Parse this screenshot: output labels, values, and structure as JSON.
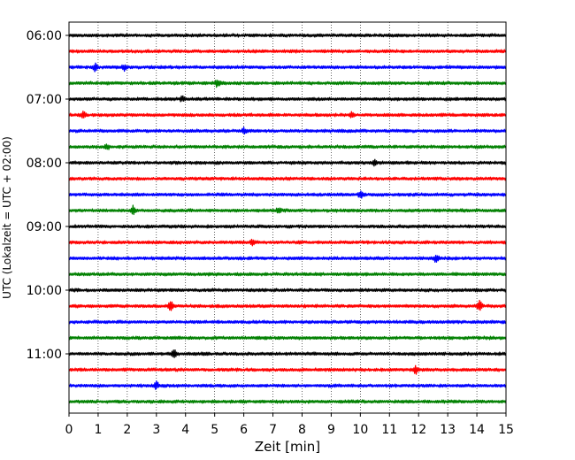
{
  "chart_data": {
    "type": "line",
    "title": "",
    "xlabel": "Zeit  [min]",
    "ylabel": "UTC (Lokalzeit = UTC + 02:00)",
    "xlim": [
      0,
      15
    ],
    "x_ticks": [
      0,
      1,
      2,
      3,
      4,
      5,
      6,
      7,
      8,
      9,
      10,
      11,
      12,
      13,
      14,
      15
    ],
    "x_tick_labels": [
      "0",
      "1",
      "2",
      "3",
      "4",
      "5",
      "6",
      "7",
      "8",
      "9",
      "10",
      "11",
      "12",
      "13",
      "14",
      "15"
    ],
    "y_tick_labels": [
      "06:00",
      "07:00",
      "08:00",
      "09:00",
      "10:00",
      "11:00"
    ],
    "grid": "vertical dotted at each minute",
    "legend": "none",
    "traces_per_hour": 4,
    "trace_minutes": 15,
    "color_cycle": [
      "#000000",
      "#ff0000",
      "#0000ff",
      "#008000"
    ],
    "traces": [
      {
        "start": "06:00",
        "color": "#000000"
      },
      {
        "start": "06:15",
        "color": "#ff0000"
      },
      {
        "start": "06:30",
        "color": "#0000ff"
      },
      {
        "start": "06:45",
        "color": "#008000"
      },
      {
        "start": "07:00",
        "color": "#000000"
      },
      {
        "start": "07:15",
        "color": "#ff0000"
      },
      {
        "start": "07:30",
        "color": "#0000ff"
      },
      {
        "start": "07:45",
        "color": "#008000"
      },
      {
        "start": "08:00",
        "color": "#000000"
      },
      {
        "start": "08:15",
        "color": "#ff0000"
      },
      {
        "start": "08:30",
        "color": "#0000ff"
      },
      {
        "start": "08:45",
        "color": "#008000"
      },
      {
        "start": "09:00",
        "color": "#000000"
      },
      {
        "start": "09:15",
        "color": "#ff0000"
      },
      {
        "start": "09:30",
        "color": "#0000ff"
      },
      {
        "start": "09:45",
        "color": "#008000"
      },
      {
        "start": "10:00",
        "color": "#000000"
      },
      {
        "start": "10:15",
        "color": "#ff0000"
      },
      {
        "start": "10:30",
        "color": "#0000ff"
      },
      {
        "start": "10:45",
        "color": "#008000"
      },
      {
        "start": "11:00",
        "color": "#000000"
      },
      {
        "start": "11:15",
        "color": "#ff0000"
      },
      {
        "start": "11:30",
        "color": "#0000ff"
      },
      {
        "start": "11:45",
        "color": "#008000"
      }
    ],
    "events": [
      {
        "trace": 2,
        "x": 0.9,
        "amp": 4
      },
      {
        "trace": 2,
        "x": 1.9,
        "amp": 3
      },
      {
        "trace": 3,
        "x": 5.1,
        "amp": 4
      },
      {
        "trace": 4,
        "x": 3.9,
        "amp": 3
      },
      {
        "trace": 5,
        "x": 0.5,
        "amp": 4
      },
      {
        "trace": 5,
        "x": 9.7,
        "amp": 3
      },
      {
        "trace": 6,
        "x": 6.0,
        "amp": 3
      },
      {
        "trace": 7,
        "x": 1.3,
        "amp": 3
      },
      {
        "trace": 8,
        "x": 10.5,
        "amp": 3
      },
      {
        "trace": 10,
        "x": 10.0,
        "amp": 4
      },
      {
        "trace": 11,
        "x": 2.2,
        "amp": 5
      },
      {
        "trace": 11,
        "x": 7.2,
        "amp": 3
      },
      {
        "trace": 13,
        "x": 6.3,
        "amp": 3
      },
      {
        "trace": 14,
        "x": 12.6,
        "amp": 4
      },
      {
        "trace": 17,
        "x": 3.5,
        "amp": 6
      },
      {
        "trace": 17,
        "x": 14.1,
        "amp": 6
      },
      {
        "trace": 20,
        "x": 3.6,
        "amp": 4
      },
      {
        "trace": 21,
        "x": 11.9,
        "amp": 4
      },
      {
        "trace": 22,
        "x": 3.0,
        "amp": 4
      }
    ]
  }
}
